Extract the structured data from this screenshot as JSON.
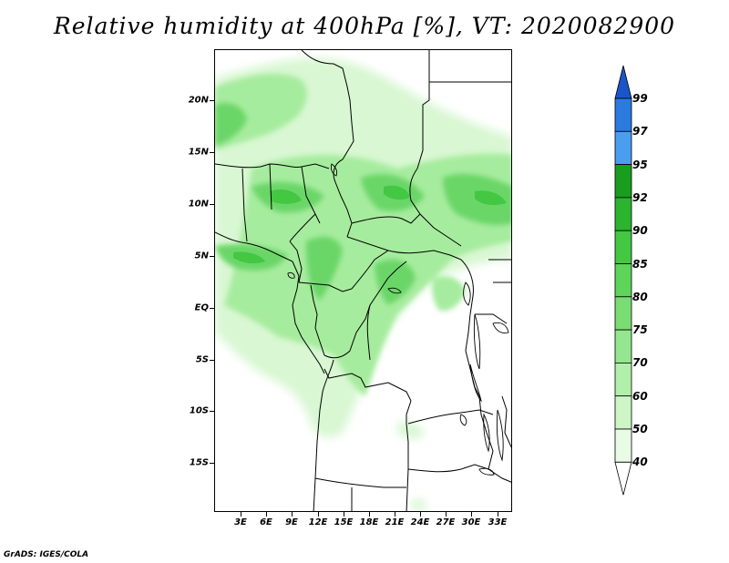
{
  "title": "Relative humidity at 400hPa [%], VT: 2020082900",
  "credit": "GrADS: IGES/COLA",
  "y_axis_labels": [
    "20N",
    "15N",
    "10N",
    "5N",
    "EQ",
    "5S",
    "10S",
    "15S"
  ],
  "x_axis_labels": [
    "3E",
    "6E",
    "9E",
    "12E",
    "15E",
    "18E",
    "21E",
    "24E",
    "27E",
    "30E",
    "33E"
  ],
  "colorbar": {
    "levels": [
      "40",
      "50",
      "60",
      "70",
      "75",
      "80",
      "85",
      "90",
      "92",
      "95",
      "97",
      "99"
    ],
    "colors": {
      "c40_50": "#e8fbe4",
      "c50_60": "#cdf5c6",
      "c60_70": "#b2efaa",
      "c70_75": "#96e68f",
      "c75_80": "#7add74",
      "c80_85": "#5ed45a",
      "c85_90": "#44c742",
      "c90_92": "#2cb42e",
      "c92_95": "#1a9c1e",
      "c95_97": "#4a9ef0",
      "c97_99": "#2a7ae0",
      "c99_up": "#1a56c8"
    }
  },
  "map": {
    "field_colors": {
      "light": "#d8f7d2",
      "mid": "#a6ec9e",
      "strong": "#6bd667",
      "deep": "#44c742"
    },
    "border_color": "#000000"
  }
}
